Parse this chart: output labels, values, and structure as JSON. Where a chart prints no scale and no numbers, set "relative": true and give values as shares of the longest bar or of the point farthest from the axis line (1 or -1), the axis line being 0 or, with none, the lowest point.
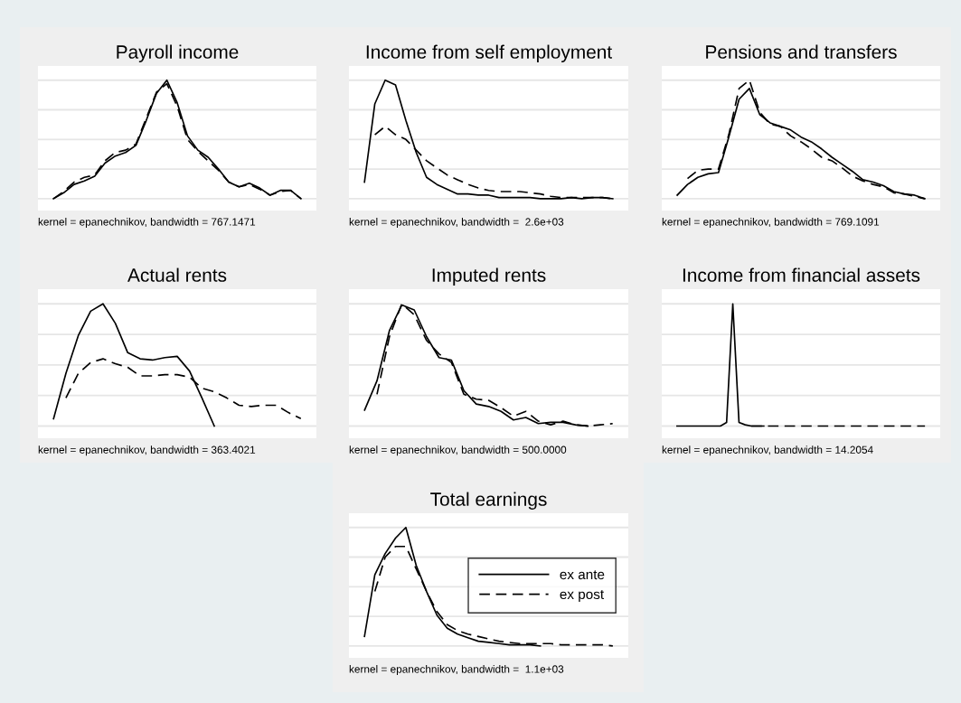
{
  "chart_data": [
    {
      "type": "line",
      "title": "Payroll income",
      "relative": true,
      "grid": "y",
      "legend": false,
      "categories": [
        null,
        null,
        null,
        null,
        null,
        null,
        null,
        null,
        null,
        null,
        null,
        null,
        null,
        null,
        null,
        null,
        null,
        null,
        null,
        null,
        null,
        null,
        null,
        null,
        null
      ],
      "series": [
        {
          "color": "#000000",
          "line_style": "solid",
          "values": [
            0,
            0.05,
            0.12,
            0.15,
            0.19,
            0.3,
            0.36,
            0.39,
            0.45,
            0.66,
            0.89,
            1.0,
            0.81,
            0.53,
            0.41,
            0.35,
            0.25,
            0.14,
            0.1,
            0.13,
            0.09,
            0.03,
            0.07,
            0.07,
            0
          ]
        },
        {
          "color": "#000000",
          "line_style": "dashed",
          "values": [
            0,
            0.06,
            0.14,
            0.18,
            0.2,
            0.32,
            0.39,
            0.41,
            0.46,
            0.68,
            0.9,
            0.97,
            0.78,
            0.5,
            0.4,
            0.32,
            0.24,
            0.14,
            0.1,
            0.12,
            0.08,
            0.03,
            0.06,
            0.07,
            0
          ]
        }
      ],
      "annotations": [
        "kernel = epanechnikov, bandwidth = 767.1471"
      ]
    },
    {
      "type": "line",
      "title": "Income from self employment",
      "relative": true,
      "grid": "y",
      "legend": false,
      "categories": [
        null,
        null,
        null,
        null,
        null,
        null,
        null,
        null,
        null,
        null,
        null,
        null,
        null,
        null,
        null,
        null,
        null,
        null,
        null,
        null,
        null,
        null,
        null,
        null,
        null
      ],
      "series": [
        {
          "color": "#000000",
          "line_style": "solid",
          "values": [
            0.14,
            0.8,
            1.0,
            0.96,
            0.66,
            0.39,
            0.18,
            0.12,
            0.08,
            0.04,
            0.04,
            0.03,
            0.03,
            0.01,
            0.01,
            0.01,
            0.01,
            0,
            0,
            0,
            0.01,
            0,
            0.01,
            0.01,
            0
          ]
        },
        {
          "color": "#000000",
          "line_style": "dashed",
          "values": [
            null,
            0.54,
            0.61,
            0.54,
            0.5,
            0.41,
            0.32,
            0.26,
            0.2,
            0.16,
            0.12,
            0.09,
            0.07,
            0.06,
            0.06,
            0.06,
            0.05,
            0.04,
            0.02,
            0.01,
            0.01,
            0.01,
            0.01,
            0.01,
            0
          ]
        }
      ],
      "annotations": [
        "kernel = epanechnikov, bandwidth =  2.6e+03"
      ]
    },
    {
      "type": "line",
      "title": "Pensions and transfers",
      "relative": true,
      "grid": "y",
      "legend": false,
      "categories": [
        null,
        null,
        null,
        null,
        null,
        null,
        null,
        null,
        null,
        null,
        null,
        null,
        null,
        null,
        null,
        null,
        null,
        null,
        null,
        null,
        null,
        null,
        null,
        null,
        null
      ],
      "series": [
        {
          "color": "#000000",
          "line_style": "solid",
          "values": [
            0.03,
            0.12,
            0.18,
            0.21,
            0.22,
            0.52,
            0.84,
            0.93,
            0.71,
            0.64,
            0.61,
            0.58,
            0.52,
            0.48,
            0.42,
            0.35,
            0.29,
            0.23,
            0.16,
            0.14,
            0.11,
            0.06,
            0.04,
            0.03,
            0
          ]
        },
        {
          "color": "#000000",
          "line_style": "dashed",
          "values": [
            null,
            0.17,
            0.24,
            0.25,
            0.25,
            0.54,
            0.93,
            1.0,
            0.73,
            0.63,
            0.61,
            0.53,
            0.48,
            0.42,
            0.35,
            0.32,
            0.26,
            0.19,
            0.15,
            0.12,
            0.1,
            0.05,
            0.04,
            0.02,
            0
          ]
        }
      ],
      "annotations": [
        "kernel = epanechnikov, bandwidth = 769.1091"
      ]
    },
    {
      "type": "line",
      "title": "Actual rents",
      "relative": true,
      "grid": "y",
      "legend": false,
      "categories": [
        null,
        null,
        null,
        null,
        null,
        null,
        null,
        null,
        null,
        null,
        null,
        null,
        null,
        null,
        null,
        null,
        null,
        null,
        null,
        null,
        null
      ],
      "series": [
        {
          "color": "#000000",
          "line_style": "solid",
          "values": [
            0.06,
            0.43,
            0.74,
            0.94,
            1.0,
            0.84,
            0.6,
            0.55,
            0.54,
            0.56,
            0.57,
            0.45,
            0.23,
            0,
            null,
            null,
            null,
            null,
            null,
            null,
            null
          ]
        },
        {
          "color": "#000000",
          "line_style": "dashed",
          "values": [
            null,
            0.23,
            0.43,
            0.52,
            0.55,
            0.51,
            0.48,
            0.41,
            0.41,
            0.42,
            0.42,
            0.4,
            0.31,
            0.28,
            0.23,
            0.17,
            0.16,
            0.17,
            0.17,
            0.11,
            0.06
          ]
        }
      ],
      "annotations": [
        "kernel = epanechnikov, bandwidth = 363.4021"
      ]
    },
    {
      "type": "line",
      "title": "Imputed rents",
      "relative": true,
      "grid": "y",
      "legend": false,
      "categories": [
        null,
        null,
        null,
        null,
        null,
        null,
        null,
        null,
        null,
        null,
        null,
        null,
        null,
        null,
        null,
        null,
        null,
        null,
        null,
        null,
        null
      ],
      "series": [
        {
          "color": "#000000",
          "line_style": "solid",
          "values": [
            0.13,
            0.37,
            0.78,
            0.99,
            0.95,
            0.73,
            0.56,
            0.54,
            0.29,
            0.18,
            0.16,
            0.12,
            0.05,
            0.07,
            0.02,
            0.03,
            0.03,
            0.01,
            0,
            null,
            null
          ]
        },
        {
          "color": "#000000",
          "line_style": "dashed",
          "values": [
            null,
            0.26,
            0.73,
            1.0,
            0.91,
            0.7,
            0.59,
            0.52,
            0.26,
            0.22,
            0.21,
            0.15,
            0.08,
            0.12,
            0.04,
            0.01,
            0.04,
            0.01,
            0,
            0.01,
            0.02
          ]
        }
      ],
      "annotations": [
        "kernel = epanechnikov, bandwidth = 500.0000"
      ]
    },
    {
      "type": "line",
      "title": "Income from financial assets",
      "relative": true,
      "grid": "y",
      "legend": false,
      "categories": [
        null,
        null,
        null,
        null,
        null,
        null,
        null,
        null,
        null,
        null,
        null,
        null,
        null,
        null,
        null,
        null,
        null,
        null,
        null,
        null,
        null,
        null,
        null,
        null,
        null,
        null,
        null,
        null,
        null,
        null,
        null,
        null,
        null,
        null,
        null,
        null,
        null,
        null,
        null,
        null,
        null
      ],
      "series": [
        {
          "color": "#000000",
          "line_style": "solid",
          "values": [
            0,
            0,
            0,
            0,
            0,
            0,
            0,
            0,
            0.03,
            1.0,
            0.03,
            0.01,
            0,
            0,
            0,
            null,
            null,
            null,
            null,
            null,
            null,
            null,
            null,
            null,
            null,
            null,
            null,
            null,
            null,
            null,
            null,
            null,
            null,
            null,
            null,
            null,
            null,
            null,
            null,
            null,
            null
          ]
        },
        {
          "color": "#000000",
          "line_style": "dashed",
          "values": [
            null,
            null,
            null,
            null,
            null,
            null,
            null,
            null,
            null,
            null,
            null,
            null,
            0,
            0,
            0,
            0,
            0,
            0,
            0,
            0,
            0,
            0,
            0,
            0,
            0,
            0,
            0,
            0,
            0,
            0,
            0,
            0,
            0,
            0,
            0,
            0,
            0,
            0,
            0,
            0,
            0
          ]
        }
      ],
      "annotations": [
        "kernel = epanechnikov, bandwidth = 14.2054"
      ]
    },
    {
      "type": "line",
      "title": "Total earnings",
      "relative": true,
      "grid": "y",
      "legend": "right",
      "categories": [
        null,
        null,
        null,
        null,
        null,
        null,
        null,
        null,
        null,
        null,
        null,
        null,
        null,
        null,
        null,
        null,
        null,
        null,
        null,
        null,
        null,
        null,
        null,
        null,
        null
      ],
      "series": [
        {
          "name": "ex ante",
          "color": "#000000",
          "line_style": "solid",
          "values": [
            0.08,
            0.6,
            0.78,
            0.91,
            1.0,
            0.68,
            0.46,
            0.26,
            0.15,
            0.1,
            0.07,
            0.04,
            0.03,
            0.02,
            0.01,
            0.01,
            0.01,
            0,
            null,
            null,
            null,
            null,
            null,
            null,
            null
          ]
        },
        {
          "name": "ex post",
          "color": "#000000",
          "line_style": "dashed",
          "values": [
            null,
            0.46,
            0.75,
            0.84,
            0.84,
            0.65,
            0.46,
            0.29,
            0.18,
            0.13,
            0.1,
            0.08,
            0.06,
            0.04,
            0.03,
            0.02,
            0.02,
            0.02,
            0.02,
            0.01,
            0.01,
            0.01,
            0.01,
            0.01,
            0
          ]
        }
      ],
      "annotations": [
        "kernel = epanechnikov, bandwidth =  1.1e+03"
      ]
    }
  ]
}
